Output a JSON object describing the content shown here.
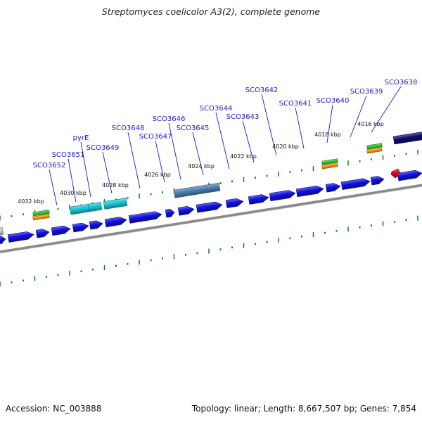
{
  "title": "Streptomyces coelicolor A3(2), complete genome",
  "footer": {
    "accession": "Accession: NC_003888",
    "summary": "Topology: linear; Length: 8,667,507 bp; Genes: 7,854"
  },
  "colors": {
    "gene": "#1010e0",
    "backbone": "#8a8a8a",
    "tick": "#1b7a1b",
    "label": "#1a1ad0",
    "cyan": "#18c4d6",
    "steel": "#4a7fb0",
    "navy": "#0c0c70",
    "green": "#33cc33",
    "orange": "#ff9900",
    "red": "#ee0000"
  },
  "ticks": [
    {
      "label": "4032 kbp"
    },
    {
      "label": "4030 kbp"
    },
    {
      "label": "4028 kbp"
    },
    {
      "label": "4026 kbp"
    },
    {
      "label": "4024 kbp"
    },
    {
      "label": "4022 kbp"
    },
    {
      "label": "4020 kbp"
    },
    {
      "label": "4018 kbp"
    },
    {
      "label": "4016 kbp"
    }
  ],
  "gene_labels": [
    {
      "name": "SCO3652"
    },
    {
      "name": "SCO3651"
    },
    {
      "name": "pyrE"
    },
    {
      "name": "SCO3649"
    },
    {
      "name": "SCO3648"
    },
    {
      "name": "SCO3647"
    },
    {
      "name": "SCO3646"
    },
    {
      "name": "SCO3645"
    },
    {
      "name": "SCO3644"
    },
    {
      "name": "SCO3643"
    },
    {
      "name": "SCO3642"
    },
    {
      "name": "SCO3641"
    },
    {
      "name": "SCO3640"
    },
    {
      "name": "SCO3639"
    },
    {
      "name": "SCO3638"
    }
  ]
}
